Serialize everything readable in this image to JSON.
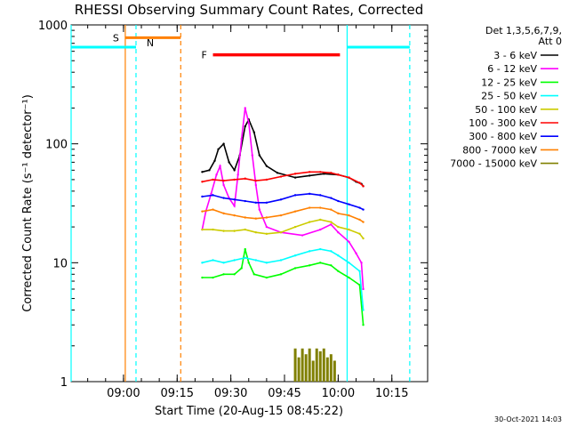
{
  "chart_data": {
    "type": "line",
    "title": "RHESSI Observing Summary Count Rates, Corrected",
    "xlabel": "Start Time (20-Aug-15 08:45:22)",
    "ylabel": "Corrected Count Rate (s⁻¹ detector⁻¹)",
    "yscale": "log",
    "ylim": [
      1,
      1000
    ],
    "xlim": [
      "08:45:22",
      "10:25:00"
    ],
    "x_ticks": [
      "09:00",
      "09:15",
      "09:30",
      "09:45",
      "10:00",
      "10:15"
    ],
    "y_ticks": [
      "1",
      "10",
      "100",
      "1000"
    ],
    "legend_header": [
      "Det 1,3,5,6,7,9,",
      "Att 0"
    ],
    "legend_position": "right",
    "timestamp": "30-Oct-2021 14:03",
    "series": [
      {
        "name": "3 - 6 keV",
        "color": "#000000",
        "t": [
          "09:22:00",
          "09:24:00",
          "09:25:30",
          "09:26:30",
          "09:28:00",
          "09:29:30",
          "09:31:00",
          "09:32:30",
          "09:34:00",
          "09:35:00",
          "09:36:30",
          "09:38:00",
          "09:40:00",
          "09:43:00",
          "09:48:00",
          "09:52:00",
          "09:56:00",
          "10:00:00",
          "10:03:00",
          "10:05:00",
          "10:06:30",
          "10:07:00"
        ],
        "values": [
          58,
          60,
          72,
          90,
          100,
          70,
          60,
          80,
          140,
          160,
          125,
          80,
          65,
          57,
          52,
          54,
          56,
          55,
          52,
          48,
          46,
          44
        ]
      },
      {
        "name": "6 - 12 keV",
        "color": "#ff00ff",
        "t": [
          "09:22:00",
          "09:23:00",
          "09:24:30",
          "09:26:00",
          "09:27:00",
          "09:28:00",
          "09:29:30",
          "09:31:00",
          "09:32:00",
          "09:33:00",
          "09:34:00",
          "09:35:00",
          "09:36:00",
          "09:37:00",
          "09:38:00",
          "09:40:00",
          "09:44:00",
          "09:50:00",
          "09:55:00",
          "09:58:00",
          "10:00:00",
          "10:03:00",
          "10:05:00",
          "10:06:30",
          "10:07:00"
        ],
        "values": [
          19,
          27,
          38,
          55,
          65,
          45,
          35,
          30,
          55,
          110,
          200,
          150,
          80,
          45,
          28,
          20,
          18,
          17,
          19,
          21,
          18,
          15,
          12,
          10,
          6
        ]
      },
      {
        "name": "12 - 25 keV",
        "color": "#00ff00",
        "t": [
          "09:22:00",
          "09:25:00",
          "09:28:00",
          "09:31:00",
          "09:33:00",
          "09:34:00",
          "09:35:00",
          "09:36:30",
          "09:40:00",
          "09:44:00",
          "09:48:00",
          "09:52:00",
          "09:55:00",
          "09:58:00",
          "10:00:00",
          "10:03:00",
          "10:06:00",
          "10:07:00"
        ],
        "values": [
          7.5,
          7.5,
          8,
          8,
          9,
          13,
          10,
          8,
          7.5,
          8,
          9,
          9.5,
          10,
          9.5,
          8.5,
          7.5,
          6.5,
          3
        ]
      },
      {
        "name": "25 - 50 keV",
        "color": "#00ffff",
        "t": [
          "09:22:00",
          "09:25:00",
          "09:28:00",
          "09:31:00",
          "09:34:00",
          "09:37:00",
          "09:40:00",
          "09:44:00",
          "09:48:00",
          "09:52:00",
          "09:55:00",
          "09:58:00",
          "10:00:00",
          "10:03:00",
          "10:06:00",
          "10:07:00"
        ],
        "values": [
          10,
          10.5,
          10,
          10.5,
          11,
          10.5,
          10,
          10.5,
          11.5,
          12.5,
          13,
          12.5,
          11.5,
          10,
          8.5,
          4
        ]
      },
      {
        "name": "50 - 100 keV",
        "color": "#cccc00",
        "t": [
          "09:22:00",
          "09:25:00",
          "09:28:00",
          "09:31:00",
          "09:34:00",
          "09:37:00",
          "09:40:00",
          "09:44:00",
          "09:48:00",
          "09:52:00",
          "09:55:00",
          "09:58:00",
          "10:00:00",
          "10:03:00",
          "10:06:00",
          "10:07:00"
        ],
        "values": [
          19,
          19,
          18.5,
          18.5,
          19,
          18,
          17.5,
          18,
          20,
          22,
          23,
          22,
          20,
          19,
          17.5,
          16
        ]
      },
      {
        "name": "100 - 300 keV",
        "color": "#ff0000",
        "t": [
          "09:22:00",
          "09:25:00",
          "09:28:00",
          "09:31:00",
          "09:34:00",
          "09:37:00",
          "09:40:00",
          "09:44:00",
          "09:48:00",
          "09:52:00",
          "09:55:00",
          "09:58:00",
          "10:00:00",
          "10:03:00",
          "10:06:00",
          "10:07:00"
        ],
        "values": [
          48,
          50,
          49,
          50,
          51,
          49,
          50,
          53,
          56,
          58,
          58,
          57,
          55,
          52,
          47,
          44
        ]
      },
      {
        "name": "300 - 800 keV",
        "color": "#0000ff",
        "t": [
          "09:22:00",
          "09:25:00",
          "09:28:00",
          "09:31:00",
          "09:34:00",
          "09:37:00",
          "09:40:00",
          "09:44:00",
          "09:48:00",
          "09:52:00",
          "09:55:00",
          "09:58:00",
          "10:00:00",
          "10:03:00",
          "10:06:00",
          "10:07:00"
        ],
        "values": [
          36,
          37,
          35,
          34,
          33,
          32,
          32,
          34,
          37,
          38,
          37,
          35,
          33,
          31,
          29,
          28
        ]
      },
      {
        "name": "800 - 7000 keV",
        "color": "#ff8000",
        "t": [
          "09:22:00",
          "09:25:00",
          "09:28:00",
          "09:31:00",
          "09:34:00",
          "09:37:00",
          "09:40:00",
          "09:44:00",
          "09:48:00",
          "09:52:00",
          "09:55:00",
          "09:58:00",
          "10:00:00",
          "10:03:00",
          "10:06:00",
          "10:07:00"
        ],
        "values": [
          27,
          28,
          26,
          25,
          24,
          23.5,
          24,
          25,
          27,
          29,
          29,
          28,
          26,
          25,
          23,
          22
        ]
      },
      {
        "name": "7000 - 15000 keV",
        "color": "#808000",
        "style": "bars",
        "t": [
          "09:48:00",
          "09:49:00",
          "09:50:00",
          "09:51:00",
          "09:52:00",
          "09:53:00",
          "09:54:00",
          "09:55:00",
          "09:56:00",
          "09:57:00",
          "09:58:00",
          "09:59:00"
        ],
        "values": [
          1.9,
          1.6,
          1.9,
          1.7,
          1.9,
          1.5,
          1.9,
          1.8,
          1.9,
          1.6,
          1.7,
          1.5
        ]
      }
    ],
    "annotations": {
      "night": [
        {
          "label": "",
          "start": "08:45:22",
          "end": "09:00:30",
          "color": "#00ffff",
          "level": 650
        },
        {
          "label": "N",
          "start": "09:00:30",
          "end": "09:03:30",
          "color": "#00ffff",
          "level": 650
        },
        {
          "label": "",
          "start": "10:02:30",
          "end": "10:20:00",
          "color": "#00ffff",
          "level": 650
        }
      ],
      "saa": {
        "label": "S",
        "start": "09:00:30",
        "end": "09:16:00",
        "color": "#ff8000",
        "level": 780
      },
      "flare": {
        "label": "F",
        "start": "09:25:00",
        "end": "10:00:30",
        "color": "#ff0000",
        "level": 560
      },
      "vlines": [
        {
          "time": "09:00:30",
          "color": "#ff8000",
          "style": "solid"
        },
        {
          "time": "09:03:30",
          "color": "#00ffff",
          "style": "dashed"
        },
        {
          "time": "09:16:00",
          "color": "#ff8000",
          "style": "dashed"
        },
        {
          "time": "10:02:30",
          "color": "#00ffff",
          "style": "solid"
        },
        {
          "time": "10:20:00",
          "color": "#00ffff",
          "style": "dashed"
        },
        {
          "time": "08:45:22",
          "color": "#00ffff",
          "style": "solid"
        }
      ]
    }
  }
}
